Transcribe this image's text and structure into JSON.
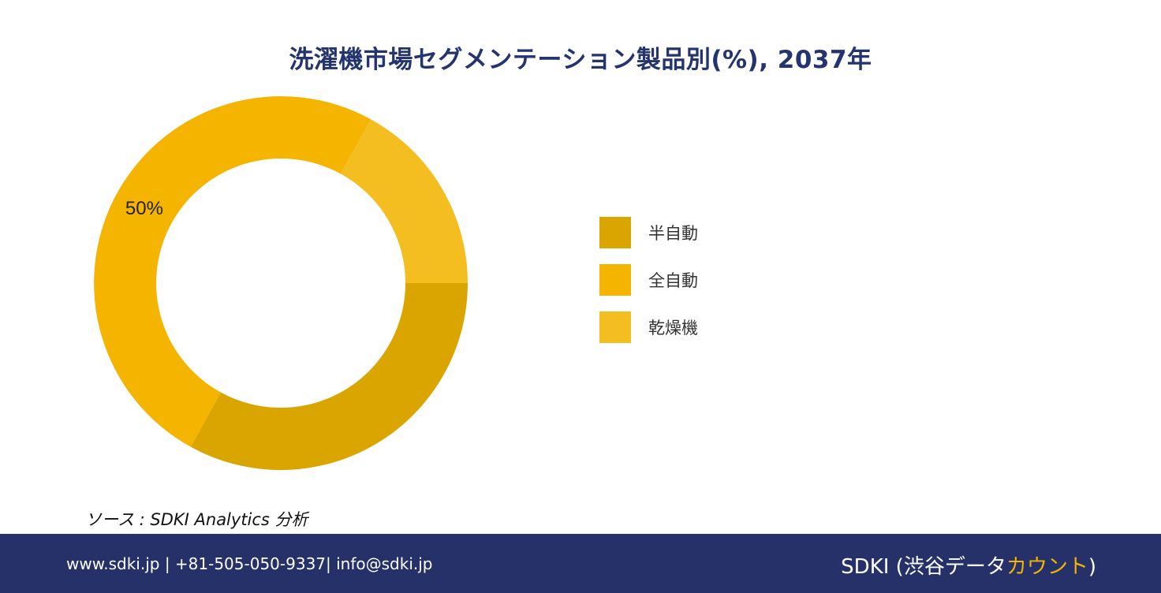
{
  "title": "洗濯機市場セグメンテーション製品別(%), 2037年",
  "chart_data": {
    "type": "pie",
    "variant": "donut",
    "title": "洗濯機市場セグメンテーション製品別(%), 2037年",
    "categories": [
      "半自動",
      "全自動",
      "乾燥機"
    ],
    "values": [
      33,
      50,
      17
    ],
    "unit": "%",
    "colors": [
      "#dba500",
      "#f4b400",
      "#f4bd20"
    ],
    "data_labels": [
      "",
      "50%",
      ""
    ],
    "legend": "right",
    "start": "3 o'clock",
    "direction": "clockwise"
  },
  "source": "ソース : SDKI Analytics 分析",
  "footer": {
    "contact": "www.sdki.jp | +81-505-050-9337| info@sdki.jp",
    "brand_main": "SDKI (渋谷データ",
    "brand_accent": "カウント",
    "brand_end": ")"
  }
}
